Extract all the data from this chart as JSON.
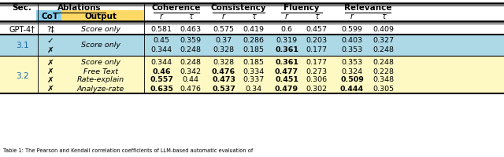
{
  "rows": [
    {
      "sec": "GPT-4†",
      "cot": "?‡",
      "output": "Score only",
      "values": [
        "0.581",
        "0.463",
        "0.575",
        "0.419",
        "0.6",
        "0.457",
        "0.599",
        "0.409"
      ],
      "bold": [
        false,
        false,
        false,
        false,
        false,
        false,
        false,
        false
      ],
      "bg": "white"
    },
    {
      "sec": "3.1",
      "cot": "✓",
      "output": "Score only",
      "values": [
        "0.45",
        "0.359",
        "0.37",
        "0.286",
        "0.319",
        "0.203",
        "0.403",
        "0.327"
      ],
      "bold": [
        false,
        false,
        false,
        false,
        false,
        false,
        false,
        false
      ],
      "bg": "blue"
    },
    {
      "sec": "3.1",
      "cot": "✗",
      "output": "Score only",
      "values": [
        "0.344",
        "0.248",
        "0.328",
        "0.185",
        "0.361",
        "0.177",
        "0.353",
        "0.248"
      ],
      "bold": [
        false,
        false,
        false,
        false,
        true,
        false,
        false,
        false
      ],
      "bg": "blue"
    },
    {
      "sec": "3.2",
      "cot": "✗",
      "output": "Score only",
      "values": [
        "0.344",
        "0.248",
        "0.328",
        "0.185",
        "0.361",
        "0.177",
        "0.353",
        "0.248"
      ],
      "bold": [
        false,
        false,
        false,
        false,
        true,
        false,
        false,
        false
      ],
      "bg": "yellow"
    },
    {
      "sec": "3.2",
      "cot": "✗",
      "output": "Free Text",
      "values": [
        "0.46",
        "0.342",
        "0.476",
        "0.334",
        "0.477",
        "0.273",
        "0.324",
        "0.228"
      ],
      "bold": [
        true,
        false,
        true,
        false,
        true,
        false,
        false,
        false
      ],
      "bg": "yellow"
    },
    {
      "sec": "3.2",
      "cot": "✗",
      "output": "Rate-explain",
      "values": [
        "0.557",
        "0.44",
        "0.473",
        "0.337",
        "0.451",
        "0.306",
        "0.509",
        "0.348"
      ],
      "bold": [
        true,
        false,
        true,
        false,
        true,
        false,
        true,
        false
      ],
      "bg": "yellow"
    },
    {
      "sec": "3.2",
      "cot": "✗",
      "output": "Analyze-rate",
      "values": [
        "0.635",
        "0.476",
        "0.537",
        "0.34",
        "0.479",
        "0.302",
        "0.444",
        "0.305"
      ],
      "bold": [
        true,
        false,
        true,
        false,
        true,
        false,
        true,
        false
      ],
      "bg": "yellow"
    }
  ],
  "bg_blue": "#add8e6",
  "bg_yellow": "#fef9c3",
  "bg_cot": "#87ceeb",
  "bg_output": "#ffd966",
  "sec_color": "#1a6aad",
  "footnote": "Table 1: The Pearson and Kendall correlation coefficients of LLM-based automatic evaluation of",
  "col_labels_r_tau": [
    "r",
    "τ",
    "r",
    "τ",
    "r",
    "τ",
    "r",
    "τ"
  ],
  "group_labels": [
    "Coherence",
    "Consistency",
    "Fluency",
    "Relevance"
  ]
}
